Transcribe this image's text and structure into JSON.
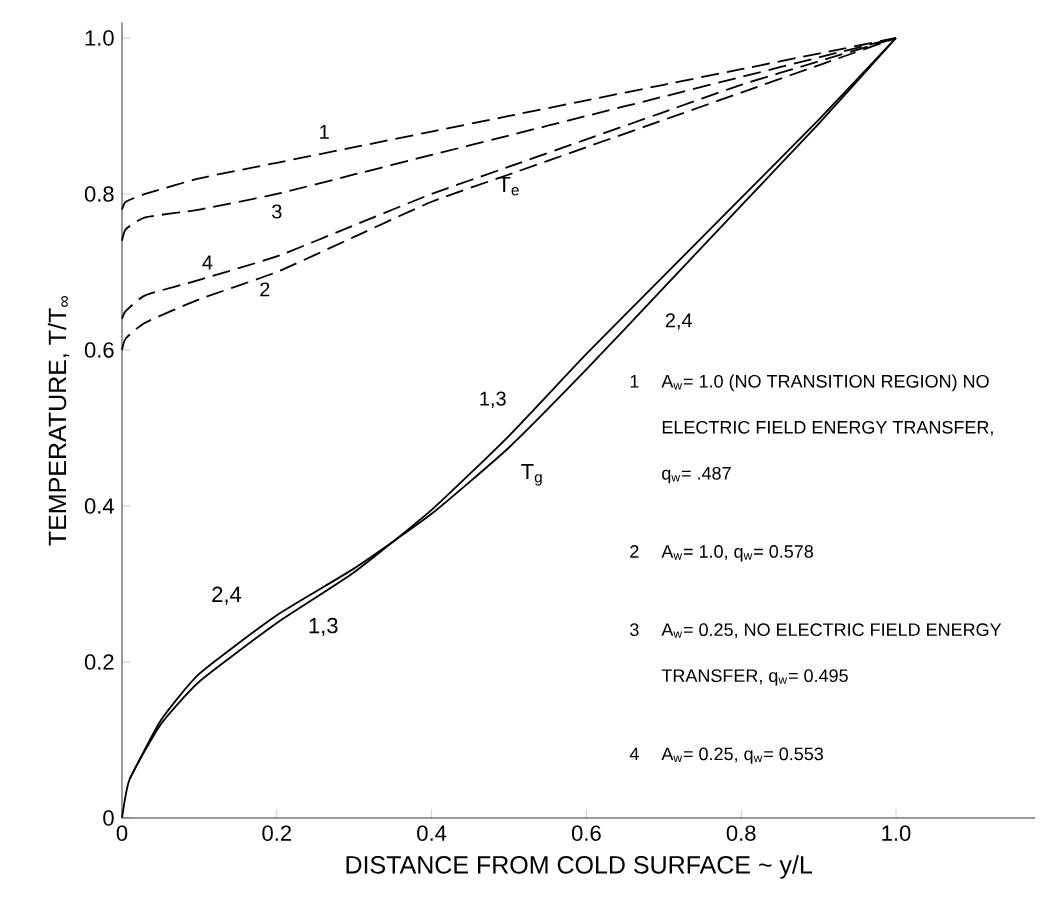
{
  "chart_data": {
    "type": "line",
    "xlabel": "DISTANCE FROM COLD SURFACE ~ y/L",
    "ylabel": "TEMPERATURE, T/T$_{∞}$",
    "xlim": [
      0,
      1.18
    ],
    "ylim": [
      0,
      1.02
    ],
    "xticks": [
      0,
      0.2,
      0.4,
      0.6,
      0.8,
      {
        "value": 1,
        "label": "1.0"
      }
    ],
    "yticks": [
      0,
      0.2,
      0.4,
      0.6,
      0.8,
      {
        "value": 1,
        "label": "1.0"
      }
    ],
    "series": [
      {
        "name": "1",
        "color": "#000000",
        "line_style": "dashed",
        "x": [
          0,
          0.005,
          0.03,
          0.1,
          0.2,
          0.3,
          0.4,
          0.5,
          0.6,
          0.7,
          0.8,
          0.9,
          1
        ],
        "values": [
          0.78,
          0.79,
          0.8,
          0.82,
          0.84,
          0.86,
          0.88,
          0.9,
          0.92,
          0.94,
          0.96,
          0.98,
          1
        ]
      },
      {
        "name": "3",
        "color": "#000000",
        "line_style": "dashed",
        "x": [
          0,
          0.005,
          0.03,
          0.1,
          0.2,
          0.3,
          0.4,
          0.5,
          0.6,
          0.7,
          0.8,
          0.9,
          1
        ],
        "values": [
          0.74,
          0.755,
          0.77,
          0.78,
          0.8,
          0.825,
          0.85,
          0.875,
          0.9,
          0.925,
          0.95,
          0.975,
          1
        ]
      },
      {
        "name": "4",
        "color": "#000000",
        "line_style": "dashed",
        "x": [
          0,
          0.005,
          0.03,
          0.1,
          0.2,
          0.3,
          0.4,
          0.5,
          0.6,
          0.7,
          0.8,
          0.9,
          1
        ],
        "values": [
          0.64,
          0.65,
          0.67,
          0.69,
          0.72,
          0.76,
          0.8,
          0.835,
          0.87,
          0.905,
          0.94,
          0.97,
          1
        ]
      },
      {
        "name": "2",
        "color": "#000000",
        "line_style": "dashed",
        "x": [
          0,
          0.005,
          0.03,
          0.1,
          0.2,
          0.3,
          0.4,
          0.5,
          0.6,
          0.7,
          0.8,
          0.9,
          1
        ],
        "values": [
          0.6,
          0.615,
          0.635,
          0.665,
          0.7,
          0.745,
          0.79,
          0.825,
          0.86,
          0.895,
          0.93,
          0.965,
          1
        ]
      },
      {
        "name": "1,3",
        "color": "#000000",
        "line_style": "solid",
        "x": [
          0,
          0.01,
          0.05,
          0.1,
          0.2,
          0.3,
          0.4,
          0.5,
          0.6,
          0.7,
          0.8,
          0.9,
          1
        ],
        "values": [
          0,
          0.05,
          0.12,
          0.175,
          0.25,
          0.315,
          0.395,
          0.49,
          0.595,
          0.695,
          0.795,
          0.895,
          1
        ]
      },
      {
        "name": "2,4",
        "color": "#000000",
        "line_style": "solid",
        "x": [
          0.01,
          0.05,
          0.1,
          0.2,
          0.3,
          0.4,
          0.5,
          0.6,
          0.7,
          0.8,
          0.9,
          1
        ],
        "values": [
          0.05,
          0.125,
          0.185,
          0.26,
          0.32,
          0.39,
          0.475,
          0.575,
          0.68,
          0.785,
          0.89,
          1
        ]
      }
    ],
    "annotations": [
      "T$_{e}$",
      "T$_{g}$",
      "2,4",
      "1,3",
      "1",
      "A$_{w}$= 1.0 (NO TRANSITION REGION) NO ELECTRIC FIELD ENERGY TRANSFER, q$_{w}$= .487",
      "2",
      "A$_{w}$= 1.0, q$_{w}$= 0.578",
      "3",
      "A$_{w}$= 0.25, NO ELECTRIC FIELD ENERGY TRANSFER, q$_{w}$= 0.495",
      "4",
      "A$_{w}$= 0.25, q$_{w}$= 0.553"
    ]
  }
}
